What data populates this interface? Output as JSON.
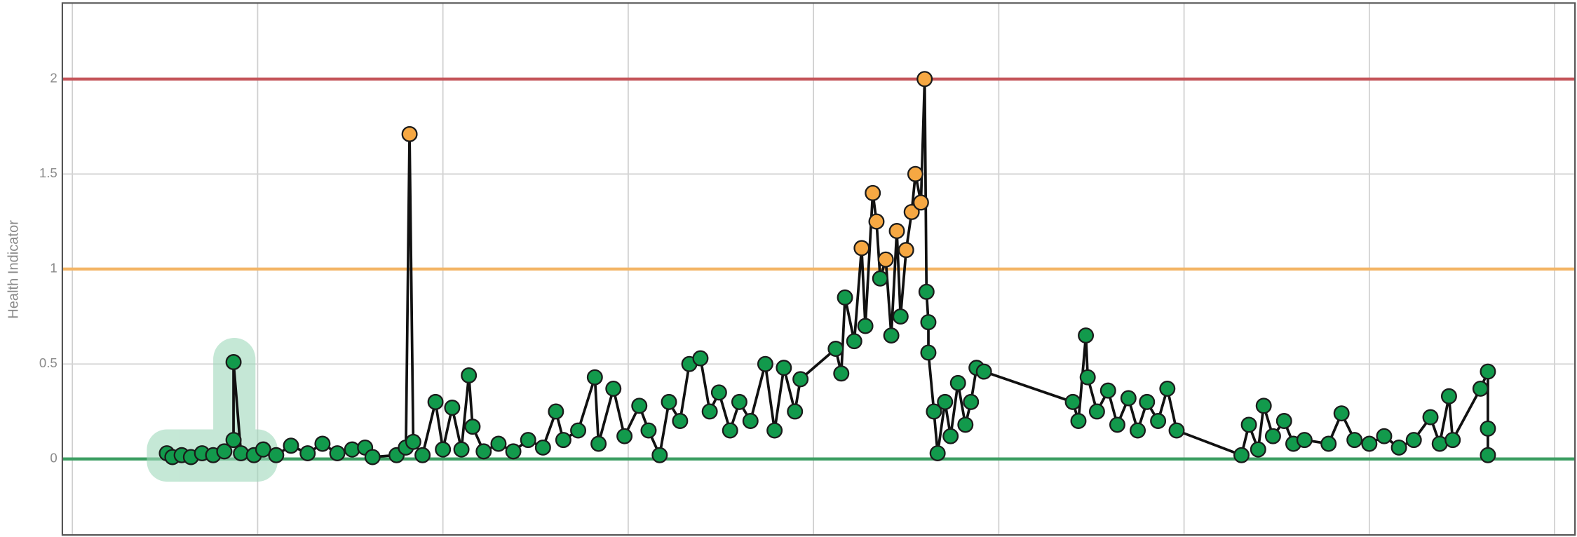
{
  "chart_data": {
    "type": "line",
    "y_label": "Health Indicator",
    "x": [
      0.51,
      0.54,
      0.59,
      0.64,
      0.7,
      0.76,
      0.82,
      0.87,
      0.87,
      0.91,
      0.98,
      1.03,
      1.1,
      1.18,
      1.27,
      1.35,
      1.43,
      1.51,
      1.58,
      1.62,
      1.75,
      1.8,
      1.82,
      1.84,
      1.89,
      1.96,
      2.0,
      2.05,
      2.1,
      2.14,
      2.16,
      2.22,
      2.3,
      2.38,
      2.46,
      2.54,
      2.61,
      2.65,
      2.73,
      2.82,
      2.84,
      2.92,
      2.98,
      3.06,
      3.11,
      3.17,
      3.22,
      3.28,
      3.33,
      3.39,
      3.44,
      3.49,
      3.55,
      3.6,
      3.66,
      3.74,
      3.79,
      3.84,
      3.9,
      3.93,
      4.12,
      4.15,
      4.17,
      4.22,
      4.26,
      4.28,
      4.32,
      4.34,
      4.36,
      4.39,
      4.42,
      4.45,
      4.47,
      4.5,
      4.53,
      4.55,
      4.58,
      4.6,
      4.61,
      4.62,
      4.62,
      4.65,
      4.67,
      4.71,
      4.74,
      4.78,
      4.82,
      4.85,
      4.88,
      4.92,
      5.4,
      5.43,
      5.47,
      5.48,
      5.53,
      5.59,
      5.64,
      5.7,
      5.75,
      5.8,
      5.86,
      5.91,
      5.96,
      6.31,
      6.35,
      6.4,
      6.43,
      6.48,
      6.54,
      6.59,
      6.65,
      6.78,
      6.85,
      6.92,
      7.0,
      7.08,
      7.16,
      7.24,
      7.33,
      7.38,
      7.43,
      7.45,
      7.6,
      7.64,
      7.64,
      7.64
    ],
    "values": [
      0.03,
      0.01,
      0.02,
      0.01,
      0.03,
      0.02,
      0.04,
      0.1,
      0.51,
      0.03,
      0.02,
      0.05,
      0.02,
      0.07,
      0.03,
      0.08,
      0.03,
      0.05,
      0.06,
      0.01,
      0.02,
      0.06,
      1.71,
      0.09,
      0.02,
      0.3,
      0.05,
      0.27,
      0.05,
      0.44,
      0.17,
      0.04,
      0.08,
      0.04,
      0.1,
      0.06,
      0.25,
      0.1,
      0.15,
      0.43,
      0.08,
      0.37,
      0.12,
      0.28,
      0.15,
      0.02,
      0.3,
      0.2,
      0.5,
      0.53,
      0.25,
      0.35,
      0.15,
      0.3,
      0.2,
      0.5,
      0.15,
      0.48,
      0.25,
      0.42,
      0.58,
      0.45,
      0.85,
      0.62,
      1.11,
      0.7,
      1.4,
      1.25,
      0.95,
      1.05,
      0.65,
      1.2,
      0.75,
      1.1,
      1.3,
      1.5,
      1.35,
      2.0,
      0.88,
      0.72,
      0.56,
      0.25,
      0.03,
      0.3,
      0.12,
      0.4,
      0.18,
      0.3,
      0.48,
      0.46,
      0.3,
      0.2,
      0.65,
      0.43,
      0.25,
      0.36,
      0.18,
      0.32,
      0.15,
      0.3,
      0.2,
      0.37,
      0.15,
      0.02,
      0.18,
      0.05,
      0.28,
      0.12,
      0.2,
      0.08,
      0.1,
      0.08,
      0.24,
      0.1,
      0.08,
      0.12,
      0.06,
      0.1,
      0.22,
      0.08,
      0.33,
      0.1,
      0.37,
      0.46,
      0.16,
      0.02
    ],
    "color": "#129a4c",
    "alert_color": "#f6a843",
    "line_color": "#111111",
    "reference_lines": [
      {
        "value": 0,
        "color": "#3c9e62"
      },
      {
        "value": 1,
        "color": "#f3b566"
      },
      {
        "value": 2,
        "color": "#c4555a"
      }
    ],
    "xlim": [
      -0.054,
      8.11
    ],
    "xticks": [
      0,
      1,
      2,
      3,
      4,
      5,
      6,
      7,
      8
    ],
    "ylim": [
      -0.4,
      2.4
    ],
    "yticks": [
      0,
      0.5,
      1,
      1.5,
      2
    ],
    "grid": true
  }
}
